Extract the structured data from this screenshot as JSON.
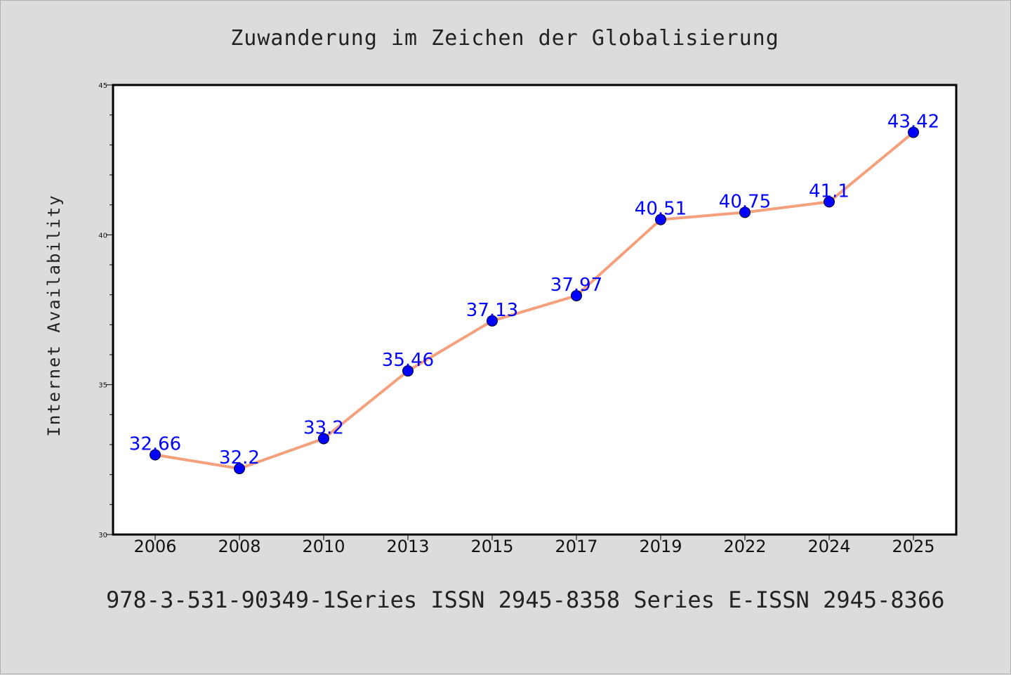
{
  "chart_data": {
    "type": "line",
    "title": "Zuwanderung im Zeichen der Globalisierung",
    "xlabel": "",
    "ylabel": "Internet Availability",
    "categories": [
      "2006",
      "2008",
      "2010",
      "2013",
      "2015",
      "2017",
      "2019",
      "2022",
      "2024",
      "2025"
    ],
    "series": [
      {
        "values": [
          32.66,
          32.2,
          33.2,
          35.46,
          37.13,
          37.97,
          40.51,
          40.75,
          41.1,
          43.42
        ],
        "labels": [
          "32.66",
          "32.2",
          "33.2",
          "35.46",
          "37.13",
          "37.97",
          "40.51",
          "40.75",
          "41.1",
          "43.42"
        ],
        "line_color": "#f4a07c",
        "marker_color": "#0000ff"
      }
    ],
    "ylim": [
      30,
      45
    ],
    "yticks": [
      "30",
      "35",
      "40",
      "45"
    ],
    "grid": false,
    "background": "#ffffff"
  },
  "footer": "978-3-531-90349-1Series ISSN 2945-8358 Series E-ISSN 2945-8366",
  "colors": {
    "page_background": "#dcdcdc",
    "line": "#f4a07c",
    "marker": "#0000ff",
    "data_label": "#0000ff"
  }
}
